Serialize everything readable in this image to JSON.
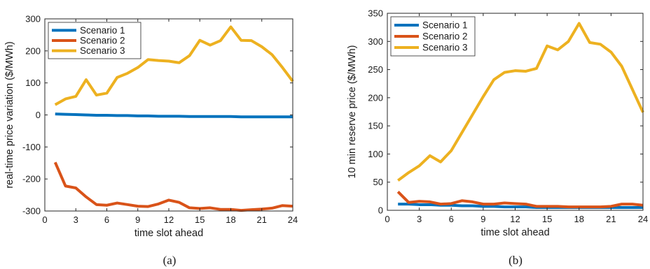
{
  "captions": {
    "a": "(a)",
    "b": "(b)"
  },
  "chart_data": [
    {
      "id": "a",
      "type": "line",
      "xlabel": "time slot ahead",
      "ylabel": "real-time price variation ($/MWh)",
      "xlim": [
        0,
        24
      ],
      "ylim": [
        -300,
        300
      ],
      "xticks": [
        0,
        3,
        6,
        9,
        12,
        15,
        18,
        21,
        24
      ],
      "yticks": [
        -300,
        -200,
        -100,
        0,
        100,
        200,
        300
      ],
      "grid": false,
      "legend_position": "top-left",
      "x": [
        1,
        2,
        3,
        4,
        5,
        6,
        7,
        8,
        9,
        10,
        11,
        12,
        13,
        14,
        15,
        16,
        17,
        18,
        19,
        20,
        21,
        22,
        23,
        24
      ],
      "series": [
        {
          "name": "Scenario 1",
          "color": "#0072BD",
          "values": [
            3,
            2,
            1,
            0,
            -1,
            -1,
            -2,
            -2,
            -3,
            -3,
            -4,
            -4,
            -4,
            -5,
            -5,
            -5,
            -5,
            -5,
            -6,
            -6,
            -6,
            -6,
            -6,
            -6
          ]
        },
        {
          "name": "Scenario 2",
          "color": "#D95319",
          "values": [
            -148,
            -222,
            -228,
            -256,
            -280,
            -282,
            -275,
            -280,
            -285,
            -286,
            -278,
            -266,
            -273,
            -290,
            -292,
            -290,
            -295,
            -295,
            -298,
            -296,
            -294,
            -291,
            -283,
            -285
          ]
        },
        {
          "name": "Scenario 3",
          "color": "#EDB120",
          "values": [
            32,
            50,
            58,
            110,
            62,
            68,
            117,
            130,
            148,
            173,
            170,
            168,
            163,
            185,
            233,
            218,
            232,
            275,
            233,
            232,
            213,
            188,
            148,
            105
          ]
        }
      ]
    },
    {
      "id": "b",
      "type": "line",
      "xlabel": "time slot ahead",
      "ylabel": "10 min reserve price ($/MWh)",
      "xlim": [
        0,
        24
      ],
      "ylim": [
        0,
        350
      ],
      "xticks": [
        0,
        3,
        6,
        9,
        12,
        15,
        18,
        21,
        24
      ],
      "yticks": [
        0,
        50,
        100,
        150,
        200,
        250,
        300,
        350
      ],
      "grid": false,
      "legend_position": "top-left",
      "x": [
        1,
        2,
        3,
        4,
        5,
        6,
        7,
        8,
        9,
        10,
        11,
        12,
        13,
        14,
        15,
        16,
        17,
        18,
        19,
        20,
        21,
        22,
        23,
        24
      ],
      "series": [
        {
          "name": "Scenario 1",
          "color": "#0072BD",
          "values": [
            11,
            11,
            10,
            10,
            9,
            9,
            8,
            8,
            7,
            7,
            6,
            6,
            6,
            5,
            5,
            5,
            5,
            5,
            5,
            5,
            5,
            5,
            5,
            5
          ]
        },
        {
          "name": "Scenario 2",
          "color": "#D95319",
          "values": [
            33,
            14,
            16,
            15,
            11,
            12,
            17,
            15,
            11,
            11,
            13,
            12,
            11,
            7,
            7,
            7,
            6,
            6,
            6,
            6,
            7,
            11,
            11,
            9
          ]
        },
        {
          "name": "Scenario 3",
          "color": "#EDB120",
          "values": [
            53,
            67,
            79,
            97,
            86,
            106,
            138,
            170,
            202,
            232,
            245,
            248,
            247,
            252,
            292,
            285,
            300,
            332,
            298,
            295,
            281,
            256,
            215,
            174
          ]
        }
      ]
    }
  ]
}
